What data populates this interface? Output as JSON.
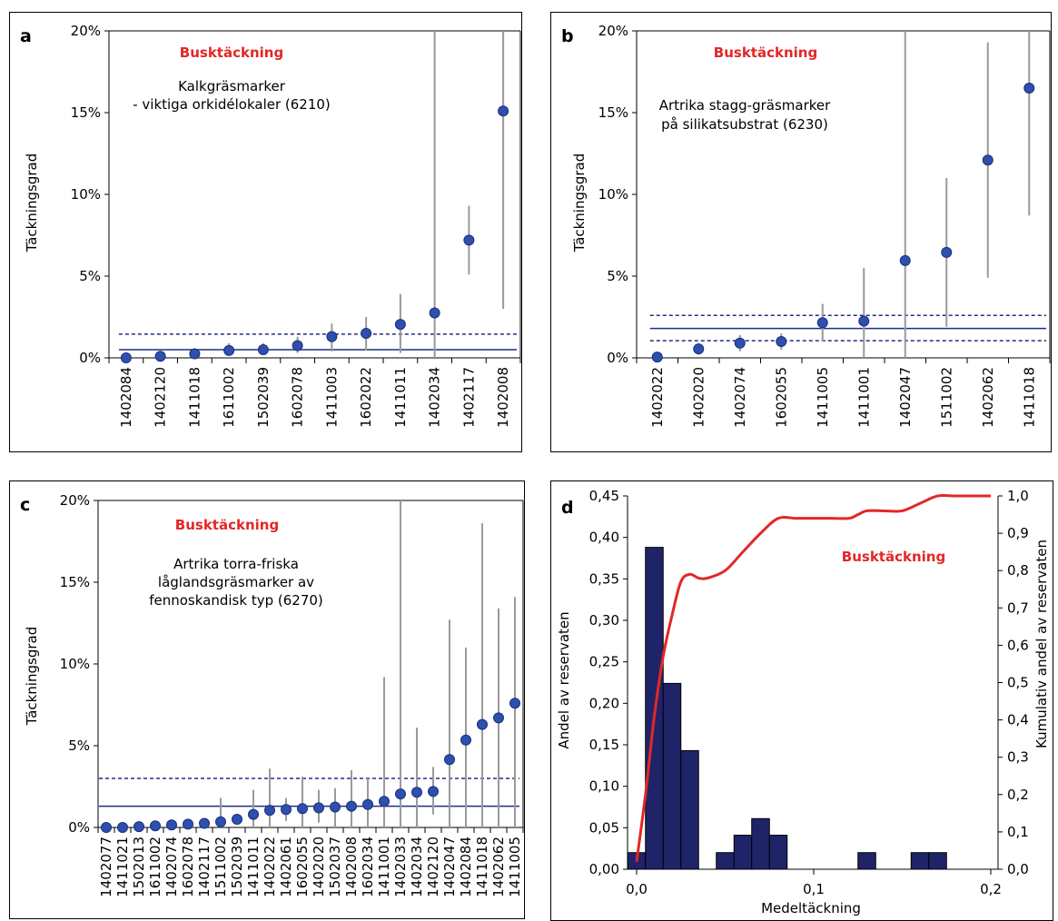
{
  "chart_data": [
    {
      "id": "a",
      "type": "scatter",
      "panel_label": "a",
      "title": "Busktäckning",
      "annotation": [
        "Kalkgräsmarker",
        "- viktiga orkidélokaler (6210)"
      ],
      "ylabel": "Täckningsgrad",
      "ylim": [
        0,
        20
      ],
      "yticks": [
        "0%",
        "5%",
        "10%",
        "15%",
        "20%"
      ],
      "yticks_values": [
        0,
        5,
        10,
        15,
        20
      ],
      "categories": [
        "1402084",
        "1402120",
        "1411018",
        "1611002",
        "1502039",
        "1602078",
        "1411003",
        "1602022",
        "1411011",
        "1402034",
        "1402117",
        "1402008"
      ],
      "values": [
        0.0,
        0.1,
        0.25,
        0.45,
        0.5,
        0.75,
        1.3,
        1.5,
        2.05,
        2.75,
        7.2,
        15.1
      ],
      "error_low": [
        0.0,
        0.0,
        0.0,
        0.2,
        0.2,
        0.3,
        0.4,
        0.45,
        0.3,
        0.0,
        5.1,
        3.0
      ],
      "error_high": [
        0.0,
        0.2,
        0.45,
        0.9,
        0.9,
        1.3,
        2.1,
        2.5,
        3.9,
        20.5,
        9.3,
        20.5
      ],
      "mean": 0.5,
      "ci_upper": 1.45
    },
    {
      "id": "b",
      "type": "scatter",
      "panel_label": "b",
      "title": "Busktäckning",
      "annotation": [
        "Artrika stagg-gräsmarker",
        "på silikatsubstrat (6230)"
      ],
      "ylabel": "Täckningsgrad",
      "ylim": [
        0,
        20
      ],
      "yticks": [
        "0%",
        "5%",
        "10%",
        "15%",
        "20%"
      ],
      "yticks_values": [
        0,
        5,
        10,
        15,
        20
      ],
      "categories": [
        "1402022",
        "1402020",
        "1402074",
        "1602055",
        "1411005",
        "1411001",
        "1402047",
        "1511002",
        "1402062",
        "1411018"
      ],
      "values": [
        0.05,
        0.55,
        0.9,
        1.0,
        2.15,
        2.25,
        5.95,
        6.45,
        12.1,
        16.5
      ],
      "error_low": [
        0.0,
        0.2,
        0.4,
        0.5,
        1.0,
        0.0,
        0.0,
        1.9,
        4.9,
        8.7
      ],
      "error_high": [
        0.1,
        0.9,
        1.4,
        1.5,
        3.3,
        5.5,
        20.5,
        11.0,
        19.3,
        20.5
      ],
      "mean": 1.8,
      "ci_upper": 2.6,
      "ci_lower": 1.05
    },
    {
      "id": "c",
      "type": "scatter",
      "panel_label": "c",
      "title": "Busktäckning",
      "annotation": [
        "Artrika torra-friska",
        "låglandsgräsmarker av",
        "fennoskandisk typ (6270)"
      ],
      "ylabel": "Täckningsgrad",
      "ylim": [
        0,
        20
      ],
      "yticks": [
        "0%",
        "5%",
        "10%",
        "15%",
        "20%"
      ],
      "yticks_values": [
        0,
        5,
        10,
        15,
        20
      ],
      "categories": [
        "1402077",
        "1411021",
        "1502013",
        "1611002",
        "1402074",
        "1602078",
        "1402117",
        "1511002",
        "1502039",
        "1411011",
        "1402022",
        "1402061",
        "1602055",
        "1402020",
        "1502037",
        "1402008",
        "1602034",
        "1411001",
        "1402033",
        "1402034",
        "1402120",
        "1402047",
        "1402084",
        "1411018",
        "1402062",
        "1411005"
      ],
      "values": [
        0.0,
        0.0,
        0.05,
        0.1,
        0.15,
        0.2,
        0.25,
        0.35,
        0.5,
        0.8,
        1.05,
        1.1,
        1.15,
        1.2,
        1.25,
        1.3,
        1.4,
        1.6,
        2.05,
        2.15,
        2.2,
        4.15,
        5.35,
        6.3,
        6.7,
        7.6
      ],
      "error_low": [
        0.0,
        0.0,
        0.0,
        0.0,
        0.0,
        0.0,
        0.0,
        0.0,
        0.0,
        0.0,
        0.0,
        0.4,
        0.0,
        0.3,
        0.0,
        0.0,
        0.0,
        0.0,
        0.0,
        0.0,
        0.8,
        0.0,
        0.0,
        0.0,
        0.0,
        0.0
      ],
      "error_high": [
        0.0,
        0.0,
        0.0,
        0.0,
        0.0,
        0.0,
        0.0,
        1.8,
        0.0,
        2.3,
        3.6,
        1.8,
        3.1,
        2.3,
        2.4,
        3.5,
        3.0,
        9.2,
        20.5,
        6.1,
        3.7,
        12.7,
        11.0,
        18.6,
        13.4,
        14.1
      ],
      "mean": 1.3,
      "ci_upper": 3.0
    },
    {
      "id": "d",
      "type": "bar",
      "panel_label": "d",
      "title": "Busktäckning",
      "xlabel": "Medeltäckning",
      "ylabel": "Andel av reservaten",
      "ylabel_right": "Kumulativ andel av reservaten",
      "xlim": [
        0,
        0.2
      ],
      "xticks": [
        "0,0",
        "0,1",
        "0,2"
      ],
      "xticks_values": [
        0,
        0.1,
        0.2
      ],
      "ylim": [
        0,
        0.45
      ],
      "yticks": [
        "0,00",
        "0,05",
        "0,10",
        "0,15",
        "0,20",
        "0,25",
        "0,30",
        "0,35",
        "0,40",
        "0,45"
      ],
      "yticks_values": [
        0,
        0.05,
        0.1,
        0.15,
        0.2,
        0.25,
        0.3,
        0.35,
        0.4,
        0.45
      ],
      "ylim_right": [
        0,
        1.0
      ],
      "yticks_right": [
        "0,0",
        "0,1",
        "0,2",
        "0,3",
        "0,4",
        "0,5",
        "0,6",
        "0,7",
        "0,8",
        "0,9",
        "1,0"
      ],
      "yticks_right_values": [
        0,
        0.1,
        0.2,
        0.3,
        0.4,
        0.5,
        0.6,
        0.7,
        0.8,
        0.9,
        1.0
      ],
      "bin_width": 0.01,
      "bin_centers": [
        0.0,
        0.01,
        0.02,
        0.03,
        0.04,
        0.05,
        0.06,
        0.07,
        0.08,
        0.09,
        0.1,
        0.11,
        0.12,
        0.13,
        0.14,
        0.15,
        0.16,
        0.17,
        0.18,
        0.19,
        0.2
      ],
      "values": [
        0.02,
        0.388,
        0.224,
        0.143,
        0.0,
        0.02,
        0.041,
        0.061,
        0.041,
        0.0,
        0.0,
        0.0,
        0.0,
        0.02,
        0.0,
        0.0,
        0.02,
        0.02,
        0.0,
        0.0,
        0.0
      ],
      "cumulative": {
        "x": [
          0.0,
          0.005,
          0.01,
          0.015,
          0.02,
          0.025,
          0.03,
          0.035,
          0.04,
          0.05,
          0.06,
          0.07,
          0.08,
          0.09,
          0.1,
          0.11,
          0.12,
          0.125,
          0.13,
          0.14,
          0.15,
          0.16,
          0.17,
          0.18,
          0.19,
          0.2
        ],
        "y": [
          0.02,
          0.2,
          0.41,
          0.57,
          0.68,
          0.77,
          0.79,
          0.78,
          0.78,
          0.8,
          0.85,
          0.9,
          0.94,
          0.94,
          0.94,
          0.94,
          0.94,
          0.95,
          0.96,
          0.96,
          0.96,
          0.98,
          1.0,
          1.0,
          1.0,
          1.0
        ]
      }
    }
  ]
}
